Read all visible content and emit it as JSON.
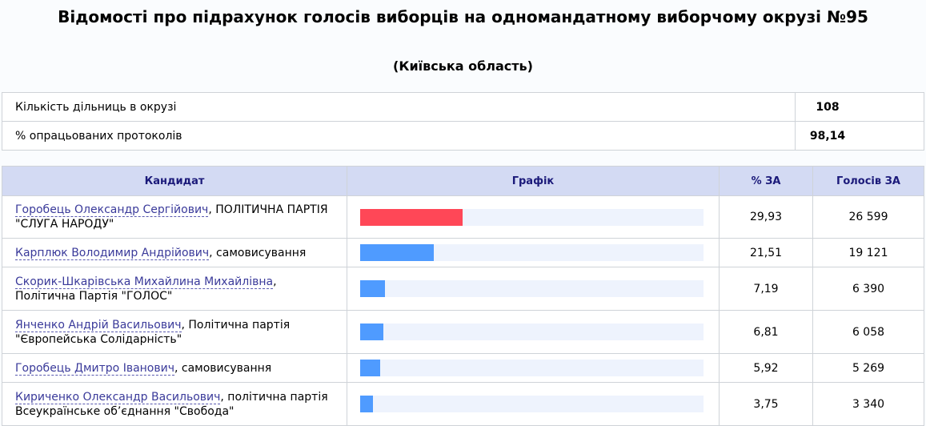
{
  "title": "Відомості про підрахунок голосів виборців на одномандатному виборчому окрузі №95",
  "region": "(Київська область)",
  "info": [
    {
      "label": "Кількість дільниць в окрузі",
      "value": "108"
    },
    {
      "label": "% опрацьованих протоколів",
      "value": "98,14"
    }
  ],
  "headers": {
    "candidate": "Кандидат",
    "chart": "Графік",
    "percent": "% ЗА",
    "votes": "Голосів ЗА"
  },
  "colors": {
    "leader_bar": "#ff4757",
    "bar": "#4f9bff",
    "track": "#eef3fd",
    "header_bg": "#d3daf3"
  },
  "rows": [
    {
      "name": "Горобець Олександр Сергійович",
      "party": ", ПОЛІТИЧНА ПАРТІЯ \"СЛУГА НАРОДУ\"",
      "percent": "29,93",
      "pct": 29.93,
      "votes": "26 599",
      "h": 53
    },
    {
      "name": "Карплюк Володимир Андрійович",
      "party": ", самовисування",
      "percent": "21,51",
      "pct": 21.51,
      "votes": "19 121",
      "h": 36
    },
    {
      "name": "Скорик-Шкарівська Михайлина Михайлівна",
      "party": ", Політична Партія \"ГОЛОС\"",
      "percent": "7,19",
      "pct": 7.19,
      "votes": "6 390",
      "h": 54
    },
    {
      "name": "Янченко Андрій Васильович",
      "party": ", Політична партія \"Європейська Солідарність\"",
      "percent": "6,81",
      "pct": 6.81,
      "votes": "6 058",
      "h": 54
    },
    {
      "name": "Горобець Дмитро Іванович",
      "party": ", самовисування",
      "percent": "5,92",
      "pct": 5.92,
      "votes": "5 269",
      "h": 36
    },
    {
      "name": "Кириченко Олександр Васильович",
      "party": ", політична партія Всеукраїнське об’єднання \"Свобода\"",
      "percent": "3,75",
      "pct": 3.75,
      "votes": "3 340",
      "h": 54
    }
  ]
}
